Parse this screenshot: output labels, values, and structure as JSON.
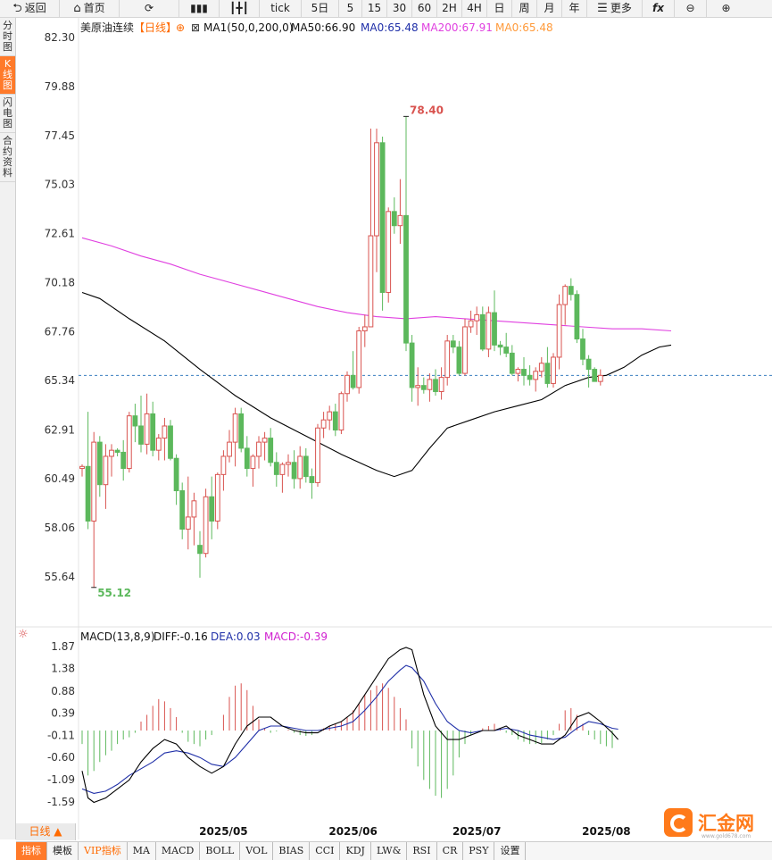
{
  "toolbar": {
    "back": "返回",
    "home": "首页",
    "tick": "tick",
    "d5": "5日",
    "m5": "5",
    "m15": "15",
    "m30": "30",
    "m60": "60",
    "h2": "2H",
    "h4": "4H",
    "day": "日",
    "week": "周",
    "month": "月",
    "year": "年",
    "more": "更多"
  },
  "leftbar": [
    "分时图",
    "K线图",
    "闪电图",
    "合约资料"
  ],
  "bottom": {
    "daily_tab": "日线 ▲",
    "indicators": [
      "指标",
      "模板",
      "VIP指标",
      "MA",
      "MACD",
      "BOLL",
      "VOL",
      "BIAS",
      "CCI",
      "KDJ",
      "LW&",
      "RSI",
      "CR",
      "PSY",
      "设置"
    ]
  },
  "logo": {
    "text": "汇金网",
    "url": "www.gold678.com"
  },
  "colors": {
    "up": "#d9534f",
    "down": "#5cb85c",
    "ma50": "#000000",
    "ma200": "#e040e0",
    "dea": "#1f2fa8",
    "accent": "#ff7a1a"
  },
  "chart_data": {
    "type": "candlestick",
    "title": "美原油连续",
    "period": "日线",
    "legend": {
      "ma1": "MA1(50,0,200,0)",
      "ma50": "MA50:66.90",
      "ma": "MA0:65.48",
      "ma200": "MA200:67.91",
      "ma0": "MA0:65.48"
    },
    "price_ticks": [
      "82.30",
      "79.88",
      "77.45",
      "75.03",
      "72.61",
      "70.18",
      "67.76",
      "65.34",
      "62.91",
      "60.49",
      "58.06",
      "55.64"
    ],
    "ylim": [
      54.4,
      82.3
    ],
    "current_price": 65.6,
    "max_label": "78.40",
    "min_label": "55.12",
    "x_labels": [
      {
        "label": "2025/05",
        "index": 24
      },
      {
        "label": "2025/06",
        "index": 46
      },
      {
        "label": "2025/07",
        "index": 67
      },
      {
        "label": "2025/08",
        "index": 89
      }
    ],
    "candles": [
      [
        61.0,
        61.2,
        60.6,
        61.1
      ],
      [
        61.1,
        63.8,
        58.0,
        58.4
      ],
      [
        58.4,
        62.8,
        55.1,
        62.3
      ],
      [
        62.3,
        62.6,
        59.6,
        60.2
      ],
      [
        60.2,
        62.2,
        59.0,
        61.6
      ],
      [
        61.6,
        62.2,
        60.6,
        61.9
      ],
      [
        61.9,
        62.0,
        61.6,
        61.8
      ],
      [
        61.8,
        62.4,
        60.4,
        61.0
      ],
      [
        61.0,
        63.8,
        60.8,
        63.6
      ],
      [
        63.6,
        64.2,
        62.3,
        63.1
      ],
      [
        63.1,
        64.6,
        61.8,
        62.2
      ],
      [
        62.2,
        64.7,
        61.7,
        63.7
      ],
      [
        63.7,
        64.3,
        61.6,
        61.9
      ],
      [
        61.9,
        62.7,
        61.4,
        62.5
      ],
      [
        62.5,
        63.5,
        61.4,
        63.1
      ],
      [
        63.1,
        63.4,
        61.4,
        61.5
      ],
      [
        61.5,
        61.7,
        59.2,
        59.9
      ],
      [
        59.9,
        60.3,
        57.5,
        58.0
      ],
      [
        58.0,
        60.6,
        57.0,
        58.6
      ],
      [
        58.6,
        59.8,
        57.2,
        59.4
      ],
      [
        57.2,
        57.9,
        55.6,
        56.8
      ],
      [
        56.8,
        60.0,
        56.6,
        59.6
      ],
      [
        59.6,
        60.6,
        57.5,
        58.4
      ],
      [
        58.4,
        60.8,
        58.0,
        60.7
      ],
      [
        60.7,
        61.9,
        59.9,
        61.6
      ],
      [
        61.6,
        62.9,
        61.3,
        62.3
      ],
      [
        62.3,
        64.0,
        61.1,
        63.7
      ],
      [
        63.7,
        64.0,
        61.8,
        62.0
      ],
      [
        62.0,
        62.6,
        60.6,
        61.0
      ],
      [
        61.0,
        61.7,
        60.1,
        61.6
      ],
      [
        61.6,
        62.6,
        61.0,
        62.3
      ],
      [
        62.3,
        62.8,
        61.4,
        62.5
      ],
      [
        62.5,
        63.0,
        61.1,
        61.3
      ],
      [
        61.3,
        61.8,
        60.1,
        60.7
      ],
      [
        60.7,
        61.3,
        59.8,
        61.2
      ],
      [
        61.2,
        61.7,
        60.6,
        61.3
      ],
      [
        61.3,
        61.9,
        60.0,
        60.5
      ],
      [
        60.5,
        62.1,
        60.0,
        61.6
      ],
      [
        61.6,
        62.0,
        60.3,
        60.6
      ],
      [
        60.6,
        61.0,
        59.5,
        60.3
      ],
      [
        60.3,
        63.2,
        60.1,
        63.0
      ],
      [
        63.0,
        63.8,
        62.5,
        63.4
      ],
      [
        63.4,
        64.1,
        62.9,
        63.8
      ],
      [
        63.8,
        64.2,
        62.6,
        62.9
      ],
      [
        62.9,
        64.8,
        62.7,
        64.7
      ],
      [
        64.7,
        65.8,
        64.3,
        65.6
      ],
      [
        65.6,
        66.8,
        64.9,
        65.0
      ],
      [
        65.0,
        68.0,
        64.7,
        67.8
      ],
      [
        67.8,
        68.6,
        67.0,
        68.0
      ],
      [
        68.0,
        77.8,
        68.0,
        72.5
      ],
      [
        72.5,
        77.8,
        70.7,
        77.1
      ],
      [
        77.1,
        77.4,
        68.8,
        69.7
      ],
      [
        69.7,
        73.9,
        69.2,
        73.7
      ],
      [
        73.7,
        74.4,
        72.6,
        73.0
      ],
      [
        73.0,
        75.3,
        72.1,
        73.5
      ],
      [
        73.5,
        78.4,
        66.8,
        67.2
      ],
      [
        67.2,
        67.6,
        64.3,
        65.0
      ],
      [
        65.0,
        66.0,
        64.1,
        65.1
      ],
      [
        65.1,
        65.5,
        64.7,
        64.9
      ],
      [
        64.9,
        65.7,
        64.3,
        65.4
      ],
      [
        65.4,
        65.9,
        64.6,
        64.8
      ],
      [
        64.8,
        66.0,
        64.4,
        65.5
      ],
      [
        65.5,
        67.6,
        65.1,
        67.3
      ],
      [
        67.3,
        67.6,
        66.7,
        67.0
      ],
      [
        67.0,
        67.3,
        65.6,
        65.7
      ],
      [
        65.7,
        68.4,
        65.6,
        68.0
      ],
      [
        68.0,
        68.8,
        67.7,
        68.3
      ],
      [
        68.3,
        69.0,
        67.6,
        68.6
      ],
      [
        68.6,
        69.0,
        66.8,
        66.9
      ],
      [
        66.9,
        69.0,
        66.5,
        68.7
      ],
      [
        68.7,
        69.8,
        66.8,
        67.1
      ],
      [
        67.1,
        67.3,
        66.6,
        67.0
      ],
      [
        67.0,
        67.7,
        66.5,
        66.7
      ],
      [
        66.7,
        67.1,
        65.6,
        65.7
      ],
      [
        65.7,
        66.0,
        65.3,
        65.9
      ],
      [
        65.9,
        66.5,
        65.1,
        65.6
      ],
      [
        65.6,
        66.1,
        65.1,
        65.4
      ],
      [
        65.4,
        66.0,
        64.8,
        65.8
      ],
      [
        65.8,
        66.5,
        65.5,
        66.2
      ],
      [
        66.2,
        67.0,
        65.0,
        65.2
      ],
      [
        65.2,
        66.7,
        65.0,
        66.5
      ],
      [
        66.5,
        69.6,
        65.9,
        69.1
      ],
      [
        69.1,
        70.1,
        68.1,
        70.0
      ],
      [
        70.0,
        70.4,
        69.3,
        69.6
      ],
      [
        69.6,
        69.8,
        67.2,
        67.4
      ],
      [
        67.4,
        67.9,
        66.1,
        66.4
      ],
      [
        66.4,
        66.6,
        65.0,
        65.9
      ],
      [
        65.9,
        66.0,
        65.3,
        65.3
      ],
      [
        65.3,
        65.9,
        65.1,
        65.6
      ]
    ],
    "ma50": [
      [
        0,
        69.7
      ],
      [
        3,
        69.4
      ],
      [
        8,
        68.4
      ],
      [
        14,
        67.3
      ],
      [
        20,
        65.9
      ],
      [
        26,
        64.6
      ],
      [
        32,
        63.5
      ],
      [
        38,
        62.6
      ],
      [
        44,
        61.7
      ],
      [
        50,
        60.9
      ],
      [
        53,
        60.6
      ],
      [
        56,
        60.9
      ],
      [
        59,
        62.0
      ],
      [
        62,
        63.0
      ],
      [
        66,
        63.4
      ],
      [
        70,
        63.8
      ],
      [
        74,
        64.1
      ],
      [
        78,
        64.4
      ],
      [
        82,
        65.1
      ],
      [
        86,
        65.5
      ],
      [
        89,
        65.6
      ],
      [
        92,
        66.0
      ],
      [
        95,
        66.6
      ],
      [
        98,
        67.0
      ],
      [
        100,
        67.1
      ]
    ],
    "ma200": [
      [
        0,
        72.4
      ],
      [
        5,
        72.0
      ],
      [
        10,
        71.5
      ],
      [
        15,
        71.1
      ],
      [
        20,
        70.6
      ],
      [
        25,
        70.2
      ],
      [
        30,
        69.8
      ],
      [
        35,
        69.4
      ],
      [
        40,
        69.0
      ],
      [
        45,
        68.7
      ],
      [
        50,
        68.5
      ],
      [
        55,
        68.4
      ],
      [
        60,
        68.5
      ],
      [
        65,
        68.4
      ],
      [
        70,
        68.3
      ],
      [
        75,
        68.2
      ],
      [
        80,
        68.1
      ],
      [
        85,
        68.0
      ],
      [
        90,
        67.9
      ],
      [
        95,
        67.9
      ],
      [
        100,
        67.8
      ]
    ],
    "macd": {
      "title": "MACD(13,8,9)",
      "diff_label": "DIFF:-0.16",
      "dea_label": "DEA:0.03",
      "macd_label": "MACD:-0.39",
      "ticks": [
        "1.87",
        "1.38",
        "0.88",
        "0.39",
        "-0.11",
        "-0.60",
        "-1.09",
        "-1.59"
      ],
      "ylim": [
        -1.95,
        2.1
      ],
      "diff": [
        [
          0,
          -0.9
        ],
        [
          1,
          -1.5
        ],
        [
          2,
          -1.6
        ],
        [
          4,
          -1.5
        ],
        [
          6,
          -1.3
        ],
        [
          8,
          -1.1
        ],
        [
          10,
          -0.7
        ],
        [
          12,
          -0.4
        ],
        [
          14,
          -0.2
        ],
        [
          16,
          -0.3
        ],
        [
          18,
          -0.6
        ],
        [
          20,
          -0.8
        ],
        [
          22,
          -0.95
        ],
        [
          24,
          -0.8
        ],
        [
          26,
          -0.3
        ],
        [
          28,
          0.1
        ],
        [
          30,
          0.3
        ],
        [
          32,
          0.3
        ],
        [
          34,
          0.1
        ],
        [
          36,
          0.0
        ],
        [
          38,
          -0.05
        ],
        [
          40,
          -0.05
        ],
        [
          42,
          0.1
        ],
        [
          44,
          0.2
        ],
        [
          46,
          0.4
        ],
        [
          48,
          0.8
        ],
        [
          50,
          1.2
        ],
        [
          52,
          1.6
        ],
        [
          54,
          1.8
        ],
        [
          55,
          1.85
        ],
        [
          56,
          1.8
        ],
        [
          58,
          0.8
        ],
        [
          60,
          0.1
        ],
        [
          62,
          -0.2
        ],
        [
          64,
          -0.2
        ],
        [
          66,
          -0.1
        ],
        [
          68,
          0.0
        ],
        [
          70,
          0.0
        ],
        [
          72,
          0.1
        ],
        [
          74,
          -0.1
        ],
        [
          76,
          -0.2
        ],
        [
          78,
          -0.3
        ],
        [
          80,
          -0.3
        ],
        [
          82,
          -0.1
        ],
        [
          84,
          0.3
        ],
        [
          86,
          0.4
        ],
        [
          88,
          0.2
        ],
        [
          90,
          -0.05
        ],
        [
          91,
          -0.2
        ]
      ],
      "dea": [
        [
          0,
          -1.3
        ],
        [
          2,
          -1.4
        ],
        [
          4,
          -1.35
        ],
        [
          6,
          -1.2
        ],
        [
          8,
          -1.0
        ],
        [
          10,
          -0.85
        ],
        [
          12,
          -0.7
        ],
        [
          14,
          -0.5
        ],
        [
          16,
          -0.45
        ],
        [
          18,
          -0.5
        ],
        [
          20,
          -0.6
        ],
        [
          22,
          -0.75
        ],
        [
          24,
          -0.8
        ],
        [
          26,
          -0.6
        ],
        [
          28,
          -0.3
        ],
        [
          30,
          0.0
        ],
        [
          32,
          0.1
        ],
        [
          34,
          0.1
        ],
        [
          36,
          0.05
        ],
        [
          38,
          0.0
        ],
        [
          40,
          0.0
        ],
        [
          42,
          0.05
        ],
        [
          44,
          0.1
        ],
        [
          46,
          0.2
        ],
        [
          48,
          0.45
        ],
        [
          50,
          0.75
        ],
        [
          52,
          1.1
        ],
        [
          54,
          1.35
        ],
        [
          55,
          1.45
        ],
        [
          56,
          1.4
        ],
        [
          58,
          1.1
        ],
        [
          60,
          0.6
        ],
        [
          62,
          0.2
        ],
        [
          64,
          0.0
        ],
        [
          66,
          -0.05
        ],
        [
          68,
          0.0
        ],
        [
          70,
          0.0
        ],
        [
          72,
          0.05
        ],
        [
          74,
          0.0
        ],
        [
          76,
          -0.1
        ],
        [
          78,
          -0.15
        ],
        [
          80,
          -0.2
        ],
        [
          82,
          -0.15
        ],
        [
          84,
          0.05
        ],
        [
          86,
          0.2
        ],
        [
          88,
          0.15
        ],
        [
          90,
          0.05
        ],
        [
          91,
          0.03
        ]
      ],
      "hist": [
        -0.3,
        -1.0,
        -0.9,
        -0.7,
        -0.55,
        -0.45,
        -0.3,
        -0.2,
        -0.15,
        -0.05,
        0.2,
        0.35,
        0.55,
        0.7,
        0.65,
        0.5,
        0.3,
        -0.05,
        -0.25,
        -0.3,
        -0.35,
        -0.2,
        -0.1,
        0.0,
        0.35,
        0.75,
        1.0,
        1.05,
        0.9,
        0.55,
        0.25,
        0.05,
        -0.05,
        -0.02,
        0.0,
        0.02,
        -0.05,
        -0.1,
        -0.12,
        -0.1,
        0.0,
        0.05,
        0.1,
        0.15,
        0.2,
        0.3,
        0.45,
        0.6,
        0.8,
        0.9,
        1.0,
        1.05,
        0.95,
        0.75,
        0.5,
        0.25,
        -0.4,
        -0.8,
        -1.1,
        -1.3,
        -1.45,
        -1.5,
        -1.3,
        -1.0,
        -0.6,
        -0.3,
        -0.1,
        0.0,
        0.05,
        0.1,
        0.15,
        0.05,
        -0.05,
        -0.1,
        -0.2,
        -0.25,
        -0.3,
        -0.3,
        -0.28,
        -0.2,
        -0.1,
        0.15,
        0.45,
        0.5,
        0.35,
        0.15,
        -0.1,
        -0.2,
        -0.3,
        -0.35,
        -0.39
      ]
    }
  }
}
